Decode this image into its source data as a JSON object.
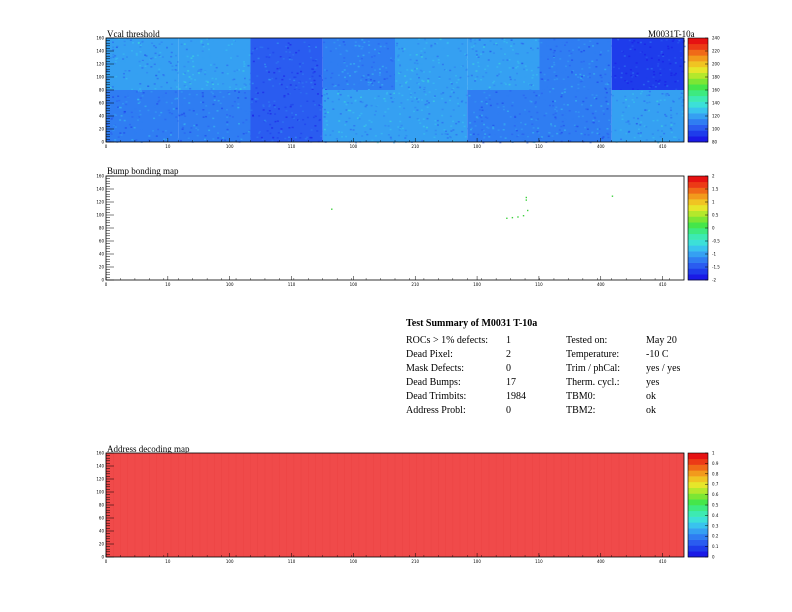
{
  "colors": {
    "frame": "#000000",
    "vcal_base": "#3a8ff0",
    "vcal_dark": "#2255e0",
    "bump_mark": "#3cd23c",
    "addr_fill": "#f04a4a"
  },
  "palette": [
    "#1a1ae6",
    "#1e3ceb",
    "#2a5cf0",
    "#2f7df2",
    "#35a0f2",
    "#39c3ee",
    "#3ce0d8",
    "#3deab2",
    "#3dea80",
    "#45e64a",
    "#7ce634",
    "#b4e82c",
    "#e6e62a",
    "#f0c422",
    "#f29a1c",
    "#f06a18",
    "#ec3a16",
    "#e61212"
  ],
  "panels": {
    "vcal": {
      "title": "Vcal threshold",
      "label_right": "M0031T-10a",
      "yticks": [
        "160",
        "140",
        "120",
        "100",
        "80",
        "60",
        "40",
        "20",
        "0"
      ],
      "xticks": [
        "0",
        "10",
        "100",
        "110",
        "100",
        "210",
        "100",
        "110",
        "400",
        "410"
      ],
      "zticks": [
        "240",
        "220",
        "200",
        "180",
        "160",
        "140",
        "120",
        "100",
        "80"
      ]
    },
    "bump": {
      "title": "Bump bonding map",
      "yticks": [
        "160",
        "140",
        "120",
        "100",
        "80",
        "60",
        "40",
        "20",
        "0"
      ],
      "xticks": [
        "0",
        "10",
        "100",
        "110",
        "100",
        "210",
        "100",
        "110",
        "400",
        "410"
      ],
      "zticks": [
        "2",
        "1.5",
        "1",
        "0.5",
        "0",
        "-0.5",
        "-1",
        "-1.5",
        "-2"
      ]
    },
    "address": {
      "title": "Address decoding map",
      "yticks": [
        "160",
        "140",
        "120",
        "100",
        "80",
        "60",
        "40",
        "20",
        "0"
      ],
      "xticks": [
        "0",
        "10",
        "100",
        "110",
        "100",
        "210",
        "100",
        "110",
        "400",
        "410"
      ],
      "zticks": [
        "1",
        "0.9",
        "0.8",
        "0.7",
        "0.6",
        "0.5",
        "0.4",
        "0.3",
        "0.2",
        "0.1",
        "0"
      ]
    }
  },
  "summary": {
    "title": "Test Summary of M0031     T-10a",
    "left": [
      {
        "label": "ROCs > 1% defects:",
        "value": "1"
      },
      {
        "label": "Dead Pixel:",
        "value": "2"
      },
      {
        "label": "Mask Defects:",
        "value": "0"
      },
      {
        "label": "Dead Bumps:",
        "value": "17"
      },
      {
        "label": "Dead Trimbits:",
        "value": "1984"
      },
      {
        "label": "Address Probl:",
        "value": "0"
      }
    ],
    "right": [
      {
        "label": "Tested on:",
        "value": "May 20"
      },
      {
        "label": "Temperature:",
        "value": "-10 C"
      },
      {
        "label": "Trim / phCal:",
        "value": "yes / yes"
      },
      {
        "label": "Therm. cycl.:",
        "value": "yes"
      },
      {
        "label": "TBM0:",
        "value": "ok"
      },
      {
        "label": "TBM2:",
        "value": "ok"
      }
    ]
  },
  "chart_data": [
    {
      "type": "heatmap",
      "title": "Vcal threshold",
      "xlim": [
        0,
        416
      ],
      "ylim": [
        0,
        160
      ],
      "zlim": [
        80,
        250
      ],
      "grid": false,
      "cells_rows": [
        {
          "row": "top",
          "roc_values": [
            118,
            125,
            102,
            115,
            122,
            118,
            112,
            95,
            120,
            112,
            108,
            115,
            118,
            120,
            105,
            118
          ]
        },
        {
          "row": "bottom",
          "roc_values": [
            115,
            112,
            100,
            120,
            118,
            115,
            112,
            118,
            120,
            115,
            112,
            118,
            110,
            122,
            118,
            112
          ]
        }
      ]
    },
    {
      "type": "heatmap",
      "title": "Bump bonding map",
      "xlim": [
        0,
        416
      ],
      "ylim": [
        0,
        160
      ],
      "zlim": [
        -2,
        2
      ],
      "grid": false,
      "points": [
        {
          "x": 302,
          "y": 128
        },
        {
          "x": 302,
          "y": 124
        },
        {
          "x": 303,
          "y": 108
        },
        {
          "x": 300,
          "y": 100
        },
        {
          "x": 296,
          "y": 98
        },
        {
          "x": 292,
          "y": 97
        },
        {
          "x": 288,
          "y": 96
        },
        {
          "x": 364,
          "y": 130
        },
        {
          "x": 162,
          "y": 110
        }
      ]
    },
    {
      "type": "heatmap",
      "title": "Address decoding map",
      "xlim": [
        0,
        416
      ],
      "ylim": [
        0,
        160
      ],
      "zlim": [
        0,
        1
      ],
      "grid": false,
      "uniform_value": 1
    }
  ]
}
